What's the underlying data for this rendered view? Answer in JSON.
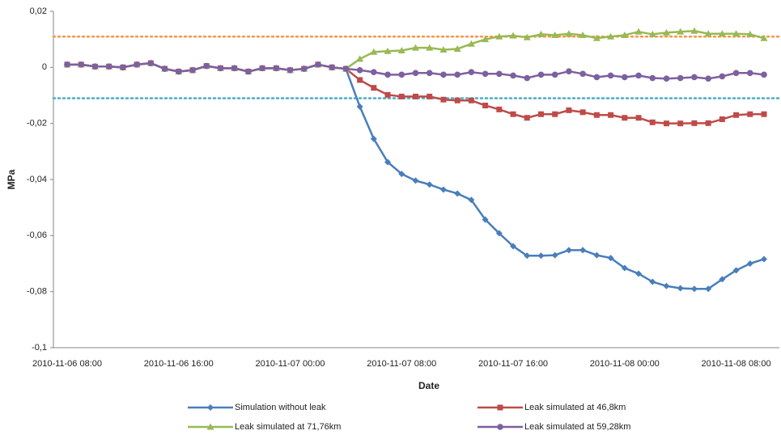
{
  "chart_data": {
    "type": "line",
    "y_axis_label": "MPa",
    "x_axis_label": "Date",
    "categories": [
      "2010-11-06 08:00",
      null,
      null,
      null,
      null,
      null,
      null,
      null,
      "2010-11-06 16:00",
      null,
      null,
      null,
      null,
      null,
      null,
      null,
      "2010-11-07 00:00",
      null,
      null,
      null,
      null,
      null,
      null,
      null,
      "2010-11-07 08:00",
      null,
      null,
      null,
      null,
      null,
      null,
      null,
      "2010-11-07 16:00",
      null,
      null,
      null,
      null,
      null,
      null,
      null,
      "2010-11-08 00:00",
      null,
      null,
      null,
      null,
      null,
      null,
      null,
      "2010-11-08 08:00",
      null,
      null
    ],
    "series": [
      {
        "name": "Simulation without leak",
        "color": "#4a7ebb",
        "marker": "diamond",
        "values": [
          0.001,
          0.001,
          0.0003,
          0.0003,
          0,
          0.001,
          0.0015,
          -0.0005,
          -0.0015,
          -0.001,
          0.0005,
          -0.0003,
          -0.0003,
          -0.0015,
          -0.0003,
          -0.0003,
          -0.001,
          -0.0005,
          0.001,
          0,
          -0.0005,
          -0.014,
          -0.0255,
          -0.0338,
          -0.038,
          -0.0404,
          -0.0418,
          -0.0436,
          -0.045,
          -0.0473,
          -0.0543,
          -0.0592,
          -0.0638,
          -0.0672,
          -0.0672,
          -0.067,
          -0.0652,
          -0.0652,
          -0.067,
          -0.068,
          -0.0716,
          -0.0736,
          -0.0765,
          -0.078,
          -0.0788,
          -0.079,
          -0.079,
          -0.0756,
          -0.0724,
          -0.07,
          -0.0684
        ]
      },
      {
        "name": "Leak simulated at 46,8km",
        "color": "#be4b48",
        "marker": "square",
        "values": [
          0.001,
          0.001,
          0.0003,
          0.0003,
          0,
          0.001,
          0.0015,
          -0.0005,
          -0.0015,
          -0.001,
          0.0005,
          -0.0003,
          -0.0003,
          -0.0015,
          -0.0003,
          -0.0003,
          -0.001,
          -0.0005,
          0.001,
          0,
          -0.0005,
          -0.0045,
          -0.0073,
          -0.0098,
          -0.0104,
          -0.0104,
          -0.0104,
          -0.0115,
          -0.0118,
          -0.0118,
          -0.0136,
          -0.015,
          -0.0167,
          -0.018,
          -0.0167,
          -0.0167,
          -0.0153,
          -0.016,
          -0.017,
          -0.017,
          -0.018,
          -0.018,
          -0.0196,
          -0.02,
          -0.02,
          -0.0199,
          -0.0199,
          -0.0185,
          -0.017,
          -0.0167,
          -0.0167
        ]
      },
      {
        "name": "Leak simulated at 71,76km",
        "color": "#98b954",
        "marker": "triangle",
        "values": [
          0.001,
          0.001,
          0.0003,
          0.0003,
          0,
          0.001,
          0.0015,
          -0.0005,
          -0.0015,
          -0.001,
          0.0005,
          -0.0003,
          -0.0003,
          -0.0015,
          -0.0003,
          -0.0003,
          -0.001,
          -0.0005,
          0.001,
          0,
          -0.0005,
          0.003,
          0.0055,
          0.0058,
          0.006,
          0.007,
          0.007,
          0.0063,
          0.0066,
          0.0084,
          0.01,
          0.011,
          0.0113,
          0.0107,
          0.0118,
          0.0115,
          0.012,
          0.0115,
          0.0104,
          0.011,
          0.0115,
          0.0127,
          0.0118,
          0.0124,
          0.0127,
          0.013,
          0.012,
          0.012,
          0.012,
          0.0118,
          0.0104
        ]
      },
      {
        "name": "Leak simulated at 59,28km",
        "color": "#7d60a0",
        "marker": "circle",
        "values": [
          0.001,
          0.001,
          0.0003,
          0.0003,
          0,
          0.001,
          0.0015,
          -0.0005,
          -0.0015,
          -0.001,
          0.0005,
          -0.0003,
          -0.0003,
          -0.0015,
          -0.0003,
          -0.0003,
          -0.001,
          -0.0005,
          0.001,
          0,
          -0.0005,
          -0.001,
          -0.0017,
          -0.0026,
          -0.0026,
          -0.002,
          -0.002,
          -0.0026,
          -0.0026,
          -0.0017,
          -0.0023,
          -0.0023,
          -0.0029,
          -0.0038,
          -0.0026,
          -0.0026,
          -0.0014,
          -0.0023,
          -0.0035,
          -0.0029,
          -0.0035,
          -0.0029,
          -0.0038,
          -0.004,
          -0.0038,
          -0.0035,
          -0.004,
          -0.0032,
          -0.002,
          -0.002,
          -0.0026
        ]
      }
    ],
    "reference_lines": [
      {
        "value": 0.011,
        "color": "#f79646"
      },
      {
        "value": -0.011,
        "color": "#4bacc6"
      }
    ],
    "ylim": [
      -0.1,
      0.02
    ],
    "yticks": [
      {
        "value": 0.02,
        "label": "0,02"
      },
      0,
      {
        "value": -0.02,
        "label": "-0,02"
      },
      {
        "value": -0.04,
        "label": "-0,04"
      },
      {
        "value": -0.06,
        "label": "-0,06"
      },
      {
        "value": -0.08,
        "label": "-0,08"
      },
      {
        "value": -0.1,
        "label": "-0,1"
      }
    ],
    "grid": false,
    "legend": "bottom"
  }
}
